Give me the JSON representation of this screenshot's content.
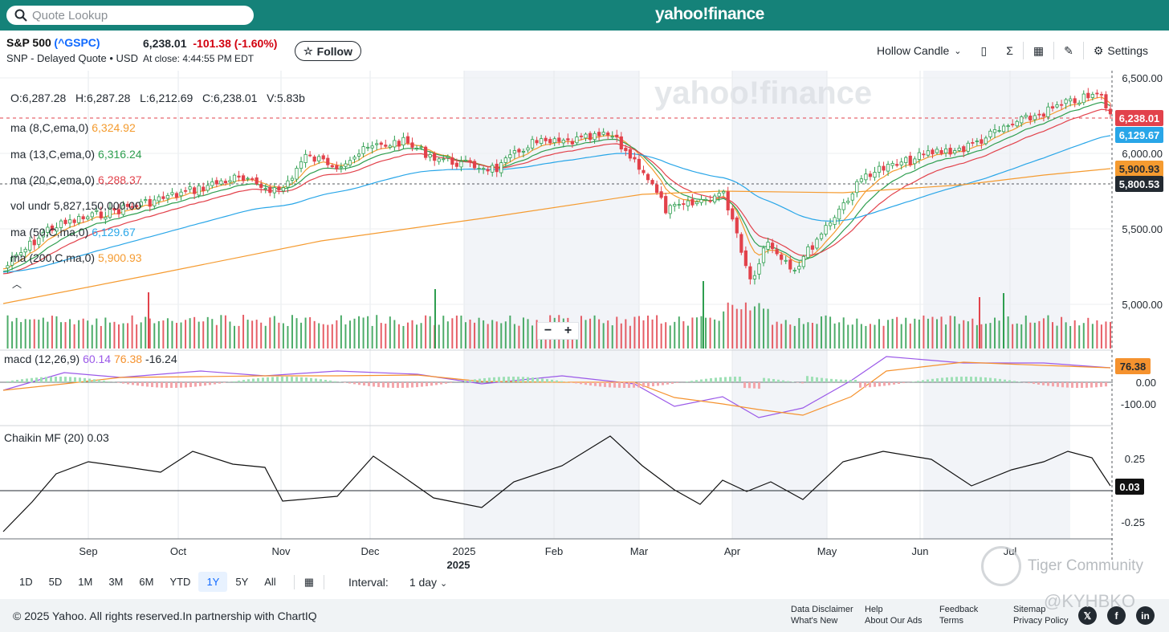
{
  "header": {
    "search_placeholder": "Quote Lookup",
    "brand": "yahoo!finance"
  },
  "quote": {
    "name": "S&P 500",
    "symbol": "(^GSPC)",
    "exchange": "SNP - Delayed Quote • USD",
    "price": "6,238.01",
    "change": "-101.38",
    "change_pct": "(-1.60%)",
    "at_close": "At close: 4:44:55 PM EDT",
    "follow_label": "Follow"
  },
  "toolbar": {
    "chart_type": "Hollow Candle",
    "settings_label": "Settings"
  },
  "legend": {
    "ohlc": "O:6,287.28   H:6,287.28   L:6,212.69   C:6,238.01   V:5.83b",
    "ma8_label": "ma (8,C,ema,0)",
    "ma8_value": "6,324.92",
    "ma13_label": "ma (13,C,ema,0)",
    "ma13_value": "6,316.24",
    "ma20_label": "ma (20,C,ema,0)",
    "ma20_value": "6,288.37",
    "vol_label": "vol undr",
    "vol_value": "5,827,150,000.00",
    "ma50_label": "ma (50,C,ma,0)",
    "ma50_value": "6,129.67",
    "ma200_label": "ma (200,C,ma,0)",
    "ma200_value": "5,900.93",
    "macd_label": "macd (12,26,9)",
    "macd_v1": "60.14",
    "macd_v2": "76.38",
    "macd_v3": "-16.24",
    "cmf_label": "Chaikin MF (20)",
    "cmf_value": "0.03"
  },
  "watermark": "yahoo!finance",
  "chart_data": {
    "type": "candlestick",
    "title": "S&P 500 (^GSPC)",
    "interval": "1 day",
    "range": "1Y",
    "price_axis": [
      "6,500.00",
      "6,000.00",
      "5,500.00",
      "5,000.00"
    ],
    "macd_axis": [
      "0.00",
      "-100.00"
    ],
    "cmf_axis": [
      "0.25",
      "-0.25"
    ],
    "x_axis": [
      "Sep",
      "Oct",
      "Nov",
      "Dec",
      "2025",
      "Feb",
      "Mar",
      "Apr",
      "May",
      "Jun",
      "Jul"
    ],
    "tags": {
      "last": "6,238.01",
      "ma50": "6,129.67",
      "ma200": "5,900.93",
      "crosshair": "5,800.53",
      "macd": "76.38",
      "cmf": "0.03"
    },
    "colors": {
      "up": "#2e9e4f",
      "down": "#e2424b",
      "ma8": "#f49b2e",
      "ma13": "#2e9e4f",
      "ma20": "#e2424b",
      "ma50": "#29a6e8",
      "ma200": "#f59b30",
      "macd": "#9b59e8",
      "signal": "#f5922e"
    }
  },
  "periods": [
    "1D",
    "5D",
    "1M",
    "3M",
    "6M",
    "YTD",
    "1Y",
    "5Y",
    "All"
  ],
  "period_selected": "1Y",
  "interval_label": "Interval:",
  "interval_value": "1 day",
  "footer": {
    "copyright": "© 2025 Yahoo. All rights reserved.In partnership with ChartIQ",
    "links": [
      "Data Disclaimer",
      "What's New",
      "Help",
      "About Our Ads",
      "Feedback",
      "Terms",
      "Sitemap",
      "Privacy Policy"
    ]
  },
  "overlay": {
    "tiger": "Tiger Community",
    "handle": "@KYHBKO"
  }
}
